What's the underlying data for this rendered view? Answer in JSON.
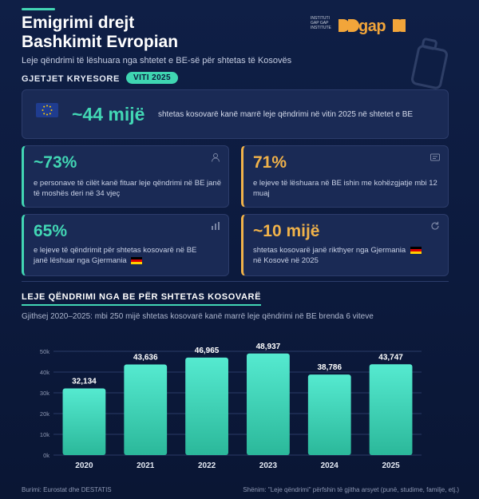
{
  "header": {
    "title_line1": "Emigrimi drejt",
    "title_line2": "Bashkimit Evropian",
    "subtitle": "Leje qëndrimi të lëshuara nga shtetet e BE-së për shtetas të Kosovës",
    "logo_small": "INSTITUTI GAP GAP INSTITUTE",
    "logo_word": "gap"
  },
  "findings": {
    "label": "GJETJET KRYESORE",
    "year_badge": "VITI 2025",
    "main": {
      "value": "~44 mijë",
      "text": "shtetas kosovarë kanë marrë leje qëndrimi në vitin 2025 në shtetet e BE"
    },
    "cards": [
      {
        "value": "~73%",
        "text": "e personave të cilët kanë fituar leje qëndrimi në BE janë të moshës deri në 34 vjeç",
        "accent": "#42d6b4",
        "icon": "person-icon"
      },
      {
        "value": "71%",
        "text": "e lejeve të lëshuara në BE ishin me kohëzgjatje mbi 12 muaj",
        "accent": "#f0b24a",
        "icon": "id-card-icon"
      },
      {
        "value": "65%",
        "text_a": "e lejeve të qëndrimit për shtetas kosovarë në BE",
        "text_b": "janë lëshuar nga Gjermania",
        "accent": "#42d6b4",
        "icon": "bar-chart-icon"
      },
      {
        "value": "~10 mijë",
        "text_a": "shtetas kosovarë janë rikthyer nga Gjermania",
        "text_b": "në Kosovë në 2025",
        "accent": "#f0b24a",
        "icon": "return-icon"
      }
    ]
  },
  "chart_data": {
    "type": "bar",
    "title": "LEJE QËNDRIMI NGA BE PËR SHTETAS KOSOVARË",
    "subtitle": "Gjithsej 2020–2025: mbi 250 mijë shtetas kosovarë kanë marrë leje qëndrimi në BE brenda 6 viteve",
    "categories": [
      "2020",
      "2021",
      "2022",
      "2023",
      "2024",
      "2025"
    ],
    "values": [
      32134,
      43636,
      46965,
      48937,
      38786,
      43747
    ],
    "data_labels": [
      "32,134",
      "43,636",
      "46,965",
      "48,937",
      "38,786",
      "43,747"
    ],
    "ylim": [
      0,
      50000
    ],
    "yticks": [
      0,
      10000,
      20000,
      30000,
      40000,
      50000
    ],
    "ytick_labels": [
      "0k",
      "10k",
      "20k",
      "30k",
      "40k",
      "50k"
    ],
    "grid": true,
    "bar_color_top": "#55ead0",
    "bar_color_bottom": "#2bb89a"
  },
  "footer": {
    "source": "Burimi: Eurostat dhe DESTATIS",
    "note": "Shënim: \"Leje qëndrimi\" përfshin të gjitha arsyet (punë, studime, familje, etj.)"
  },
  "colors": {
    "teal": "#42d6b4",
    "orange": "#f0b24a",
    "bg": "#0f1f46"
  }
}
